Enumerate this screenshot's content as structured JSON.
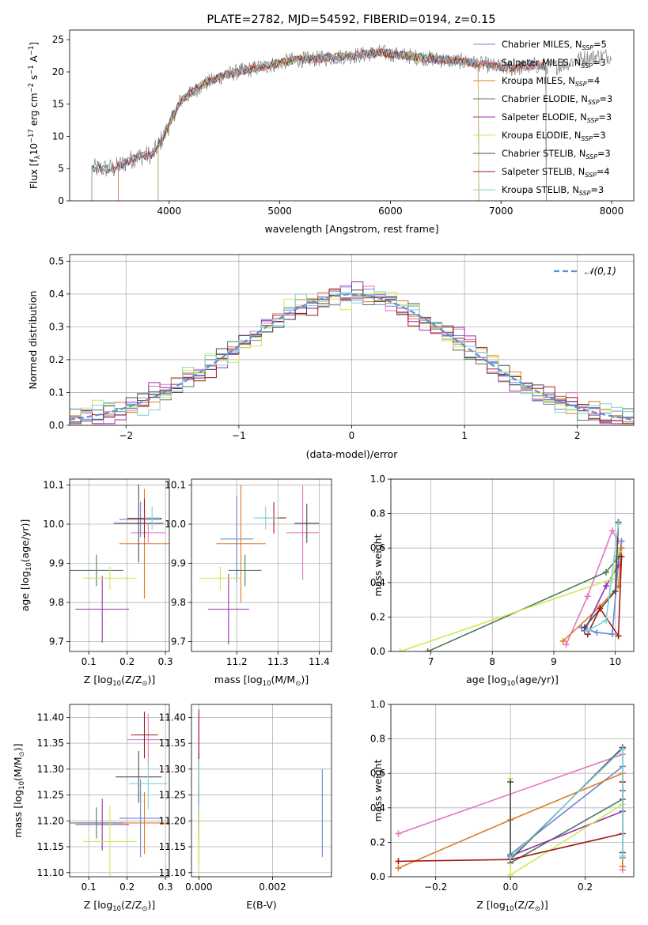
{
  "figure_title": "PLATE=2782, MJD=54592, FIBERID=0194, z=0.15",
  "colors": {
    "chabrier_miles": "#6b86d6",
    "salpeter_miles": "#e377c2",
    "kroupa_miles": "#e07b24",
    "chabrier_elodie": "#4f7a5c",
    "salpeter_elodie": "#9b2fb0",
    "kroupa_elodie": "#cde85a",
    "chabrier_stelib": "#4d4d4d",
    "salpeter_stelib": "#a11a1a",
    "kroupa_stelib": "#7fd1d6",
    "data_spectrum": "#7f7f7f",
    "normal_curve": "#5b8fd6",
    "grid": "#b0b0b0"
  },
  "chart_data": [
    {
      "type": "line",
      "id": "spectrum",
      "title": "PLATE=2782, MJD=54592, FIBERID=0194, z=0.15",
      "xlabel": "wavelength [Angstrom, rest frame]",
      "ylabel_parts": [
        "Flux [f",
        "λ",
        "10",
        "−17",
        " erg cm",
        "−2",
        " s",
        "−1",
        " A",
        "−1",
        "]"
      ],
      "xlim": [
        3100,
        8200
      ],
      "ylim": [
        0,
        26.5
      ],
      "xticks": [
        4000,
        5000,
        6000,
        7000,
        8000
      ],
      "yticks": [
        0,
        5,
        10,
        15,
        20,
        25
      ],
      "grid": false,
      "legend_position": "right",
      "series_names": [
        "Chabrier MILES, N$_{SSP}$=5",
        "Salpeter MILES, N$_{SSP}$=3",
        "Kroupa MILES, N$_{SSP}$=4",
        "Chabrier ELODIE, N$_{SSP}$=3",
        "Salpeter ELODIE, N$_{SSP}$=3",
        "Kroupa ELODIE, N$_{SSP}$=3",
        "Chabrier STELIB, N$_{SSP}$=3",
        "Salpeter STELIB, N$_{SSP}$=4",
        "Kroupa STELIB, N$_{SSP}$=3"
      ],
      "legend_labels": [
        "Chabrier MILES, N",
        "Salpeter MILES, N",
        "Kroupa MILES, N",
        "Chabrier ELODIE, N",
        "Salpeter ELODIE, N",
        "Kroupa ELODIE, N",
        "Chabrier STELIB, N",
        "Salpeter STELIB, N",
        "Kroupa STELIB, N"
      ],
      "legend_sub": "SSP",
      "legend_values": [
        "=5",
        "=3",
        "=4",
        "=3",
        "=3",
        "=3",
        "=3",
        "=4",
        "=3"
      ],
      "continuum": {
        "x": [
          3300,
          3500,
          3700,
          3850,
          3950,
          4100,
          4300,
          4500,
          4700,
          4900,
          5100,
          5300,
          5500,
          5700,
          5900,
          6100,
          6300,
          6500,
          6700,
          6900,
          7100,
          7300,
          7500,
          7700,
          7900
        ],
        "y": [
          5.0,
          5.0,
          6.8,
          7.2,
          10.0,
          15.5,
          18.0,
          19.5,
          20.3,
          21.0,
          21.8,
          22.0,
          22.3,
          22.6,
          23.0,
          22.6,
          22.2,
          21.8,
          21.5,
          21.0,
          20.5,
          21.0,
          20.8,
          22.0,
          22.5
        ]
      },
      "model_ranges": [
        [
          3540,
          7410
        ],
        [
          3540,
          7410
        ],
        [
          3540,
          7410
        ],
        [
          3900,
          6800
        ],
        [
          3900,
          6800
        ],
        [
          3900,
          6800
        ],
        [
          3300,
          7410
        ],
        [
          3300,
          7410
        ],
        [
          3300,
          7410
        ]
      ]
    },
    {
      "type": "line",
      "id": "residuals",
      "xlabel": "(data-model)/error",
      "ylabel": "Normed distribution",
      "xlim": [
        -2.5,
        2.5
      ],
      "ylim": [
        0,
        0.52
      ],
      "xticks": [
        -2,
        -1,
        0,
        1,
        2
      ],
      "xticklabels": [
        "−2",
        "−1",
        "0",
        "1",
        "2"
      ],
      "yticks": [
        0.0,
        0.1,
        0.2,
        0.3,
        0.4,
        0.5
      ],
      "yticklabels": [
        "0.0",
        "0.1",
        "0.2",
        "0.3",
        "0.4",
        "0.5"
      ],
      "grid": true,
      "legend_label": "𝒩(0,1)",
      "legend_position": "top-right",
      "bin_width": 0.1,
      "offsets": [
        0.0,
        0.018,
        -0.012,
        0.01,
        -0.022,
        0.024,
        -0.006,
        0.016,
        -0.018
      ]
    },
    {
      "type": "scatter",
      "id": "age_vs_Z",
      "xlabel_parts": [
        "Z [log",
        "10",
        "(Z/Z",
        "⊙",
        ")]"
      ],
      "ylabel_parts": [
        "age  [log",
        "10",
        "(age/yr)]"
      ],
      "xlim": [
        0.05,
        0.31
      ],
      "ylim": [
        9.675,
        10.115
      ],
      "xticks": [
        0.1,
        0.2,
        0.3
      ],
      "xticklabels": [
        "0.1",
        "0.2",
        "0.3"
      ],
      "yticks": [
        9.7,
        9.8,
        9.9,
        10.0,
        10.1
      ],
      "yticklabels": [
        "9.7",
        "9.8",
        "9.9",
        "10.0",
        "10.1"
      ],
      "grid": true,
      "points": [
        {
          "x": 0.235,
          "y": 10.012,
          "xerr": 0.055,
          "yerr": 0.045
        },
        {
          "x": 0.255,
          "y": 9.978,
          "xerr": 0.045,
          "yerr": 0.025
        },
        {
          "x": 0.245,
          "y": 9.95,
          "xerr": 0.065,
          "yerr": 0.14
        },
        {
          "x": 0.12,
          "y": 9.882,
          "xerr": 0.07,
          "yerr": 0.04
        },
        {
          "x": 0.135,
          "y": 9.783,
          "xerr": 0.07,
          "yerr": 0.085
        },
        {
          "x": 0.155,
          "y": 9.862,
          "xerr": 0.07,
          "yerr": 0.03
        },
        {
          "x": 0.23,
          "y": 10.002,
          "xerr": 0.065,
          "yerr": 0.1
        },
        {
          "x": 0.245,
          "y": 10.015,
          "xerr": 0.045,
          "yerr": 0.05
        },
        {
          "x": 0.265,
          "y": 10.016,
          "xerr": 0.02,
          "yerr": 0.03
        }
      ]
    },
    {
      "type": "scatter",
      "id": "age_vs_mass",
      "xlabel_parts": [
        "mass [log",
        "10",
        "(M/M",
        "⊙",
        ")]"
      ],
      "xlim": [
        11.09,
        11.43
      ],
      "ylim": [
        9.675,
        10.115
      ],
      "xticks": [
        11.2,
        11.3,
        11.4
      ],
      "xticklabels": [
        "11.2",
        "11.3",
        "11.4"
      ],
      "yticks": [
        9.7,
        9.8,
        9.9,
        10.0,
        10.1
      ],
      "yticklabels": [
        "9.7",
        "9.8",
        "9.9",
        "10.0",
        "10.1"
      ],
      "grid": true,
      "points": [
        {
          "x": 11.2,
          "y": 9.962,
          "xerr": 0.04,
          "yerr": 0.11
        },
        {
          "x": 11.36,
          "y": 9.978,
          "xerr": 0.04,
          "yerr": 0.12
        },
        {
          "x": 11.21,
          "y": 9.95,
          "xerr": 0.06,
          "yerr": 0.15
        },
        {
          "x": 11.22,
          "y": 9.882,
          "xerr": 0.04,
          "yerr": 0.04
        },
        {
          "x": 11.18,
          "y": 9.783,
          "xerr": 0.05,
          "yerr": 0.09
        },
        {
          "x": 11.16,
          "y": 9.862,
          "xerr": 0.05,
          "yerr": 0.03
        },
        {
          "x": 11.37,
          "y": 10.002,
          "xerr": 0.03,
          "yerr": 0.05
        },
        {
          "x": 11.29,
          "y": 10.016,
          "xerr": 0.03,
          "yerr": 0.04
        },
        {
          "x": 11.27,
          "y": 10.016,
          "xerr": 0.03,
          "yerr": 0.03
        }
      ]
    },
    {
      "type": "line",
      "id": "weight_vs_age",
      "xlabel_parts": [
        "age  [log",
        "10",
        "(age/yr)]"
      ],
      "ylabel": "mass weight",
      "xlim": [
        6.35,
        10.3
      ],
      "ylim": [
        0,
        1.0
      ],
      "xticks": [
        7,
        8,
        9,
        10
      ],
      "xticklabels": [
        "7",
        "8",
        "9",
        "10"
      ],
      "yticks": [
        0.0,
        0.2,
        0.4,
        0.6,
        0.8,
        1.0
      ],
      "yticklabels": [
        "0.0",
        "0.2",
        "0.4",
        "0.6",
        "0.8",
        "1.0"
      ],
      "grid": true,
      "series": [
        {
          "x": [
            9.45,
            9.7,
            9.95,
            10.05,
            10.1
          ],
          "y": [
            0.14,
            0.11,
            0.1,
            0.52,
            0.64
          ]
        },
        {
          "x": [
            9.2,
            9.55,
            9.95,
            10.05
          ],
          "y": [
            0.04,
            0.32,
            0.7,
            0.64
          ]
        },
        {
          "x": [
            9.15,
            9.75,
            10.05,
            10.1
          ],
          "y": [
            0.06,
            0.26,
            0.38,
            0.6
          ]
        },
        {
          "x": [
            6.95,
            9.85,
            10.05
          ],
          "y": [
            0.0,
            0.46,
            0.55
          ]
        },
        {
          "x": [
            9.5,
            9.85,
            10.05
          ],
          "y": [
            0.12,
            0.38,
            0.5
          ]
        },
        {
          "x": [
            6.5,
            9.95,
            10.05
          ],
          "y": [
            0.0,
            0.42,
            0.58
          ]
        },
        {
          "x": [
            9.5,
            10.0,
            10.05
          ],
          "y": [
            0.14,
            0.35,
            0.75
          ]
        },
        {
          "x": [
            9.55,
            9.75,
            10.05,
            10.1
          ],
          "y": [
            0.1,
            0.25,
            0.09,
            0.55
          ]
        },
        {
          "x": [
            9.55,
            9.85,
            10.05
          ],
          "y": [
            0.12,
            0.18,
            0.74
          ]
        }
      ]
    },
    {
      "type": "scatter",
      "id": "mass_vs_Z",
      "xlabel_parts": [
        "Z [log",
        "10",
        "(Z/Z",
        "⊙",
        ")]"
      ],
      "ylabel_parts": [
        "mass [log",
        "10",
        "(M/M",
        "⊙",
        ")]"
      ],
      "xlim": [
        0.05,
        0.31
      ],
      "ylim": [
        11.092,
        11.425
      ],
      "xticks": [
        0.1,
        0.2,
        0.3
      ],
      "xticklabels": [
        "0.1",
        "0.2",
        "0.3"
      ],
      "yticks": [
        11.1,
        11.15,
        11.2,
        11.25,
        11.3,
        11.35,
        11.4
      ],
      "yticklabels": [
        "11.10",
        "11.15",
        "11.20",
        "11.25",
        "11.30",
        "11.35",
        "11.40"
      ],
      "grid": true,
      "points": [
        {
          "x": 0.235,
          "y": 11.205,
          "xerr": 0.055,
          "yerr": 0.075
        },
        {
          "x": 0.255,
          "y": 11.357,
          "xerr": 0.055,
          "yerr": 0.05
        },
        {
          "x": 0.245,
          "y": 11.196,
          "xerr": 0.065,
          "yerr": 0.06
        },
        {
          "x": 0.12,
          "y": 11.196,
          "xerr": 0.07,
          "yerr": 0.03
        },
        {
          "x": 0.135,
          "y": 11.193,
          "xerr": 0.07,
          "yerr": 0.05
        },
        {
          "x": 0.155,
          "y": 11.16,
          "xerr": 0.07,
          "yerr": 0.07
        },
        {
          "x": 0.23,
          "y": 11.285,
          "xerr": 0.06,
          "yerr": 0.05
        },
        {
          "x": 0.245,
          "y": 11.366,
          "xerr": 0.035,
          "yerr": 0.045
        },
        {
          "x": 0.255,
          "y": 11.272,
          "xerr": 0.05,
          "yerr": 0.05
        }
      ]
    },
    {
      "type": "scatter",
      "id": "mass_vs_ebv",
      "xlabel": "E(B-V)",
      "xlim": [
        -0.0002,
        0.0036
      ],
      "ylim": [
        11.092,
        11.425
      ],
      "xticks": [
        0.0,
        0.002
      ],
      "xticklabels": [
        "0.000",
        "0.002"
      ],
      "yticks": [
        11.1,
        11.15,
        11.2,
        11.25,
        11.3,
        11.35,
        11.4
      ],
      "yticklabels": [
        "11.10",
        "11.15",
        "11.20",
        "11.25",
        "11.30",
        "11.35",
        "11.40"
      ],
      "grid": true,
      "points": [
        {
          "x": 0.00335,
          "y": 11.215,
          "xerr": 0,
          "yerr": 0.085
        },
        {
          "x": 0.0,
          "y": 11.35,
          "xerr": 0,
          "yerr": 0.04
        },
        {
          "x": 0.0,
          "y": 11.2,
          "xerr": 0,
          "yerr": 0.08
        },
        {
          "x": 0.0,
          "y": 11.195,
          "xerr": 0,
          "yerr": 0.03
        },
        {
          "x": 0.0,
          "y": 11.23,
          "xerr": 0,
          "yerr": 0.04
        },
        {
          "x": 0.0,
          "y": 11.16,
          "xerr": 0,
          "yerr": 0.07
        },
        {
          "x": 0.0,
          "y": 11.28,
          "xerr": 0,
          "yerr": 0.05
        },
        {
          "x": 0.0,
          "y": 11.365,
          "xerr": 0,
          "yerr": 0.05
        },
        {
          "x": 0.0,
          "y": 11.27,
          "xerr": 0,
          "yerr": 0.05
        }
      ]
    },
    {
      "type": "line",
      "id": "weight_vs_Z",
      "xlabel_parts": [
        "Z [log",
        "10",
        "(Z/Z",
        "⊙",
        ")]"
      ],
      "ylabel": "mass weight",
      "xlim": [
        -0.32,
        0.33
      ],
      "ylim": [
        0,
        1.0
      ],
      "xticks": [
        -0.2,
        0.0,
        0.2
      ],
      "xticklabels": [
        "−0.2",
        "0.0",
        "0.2"
      ],
      "yticks": [
        0.0,
        0.2,
        0.4,
        0.6,
        0.8,
        1.0
      ],
      "yticklabels": [
        "0.0",
        "0.2",
        "0.4",
        "0.6",
        "0.8",
        "1.0"
      ],
      "grid": true,
      "series": [
        {
          "x": [
            0.0,
            0.3,
            0.3
          ],
          "y": [
            0.13,
            0.64,
            0.11
          ]
        },
        {
          "x": [
            -0.3,
            0.3,
            0.3
          ],
          "y": [
            0.25,
            0.71,
            0.04
          ]
        },
        {
          "x": [
            -0.3,
            0.0,
            0.3,
            0.3
          ],
          "y": [
            0.05,
            0.33,
            0.6,
            0.06
          ]
        },
        {
          "x": [
            0.0,
            0.3,
            0.3
          ],
          "y": [
            0.08,
            0.45,
            0.75
          ]
        },
        {
          "x": [
            0.0,
            0.3,
            0.3
          ],
          "y": [
            0.12,
            0.38,
            0.5
          ]
        },
        {
          "x": [
            0.0,
            0.0,
            0.3
          ],
          "y": [
            0.57,
            0.01,
            0.42
          ]
        },
        {
          "x": [
            0.0,
            0.0,
            0.3,
            0.3
          ],
          "y": [
            0.55,
            0.1,
            0.75,
            0.14
          ]
        },
        {
          "x": [
            -0.3,
            0.0,
            0.3,
            0.3
          ],
          "y": [
            0.09,
            0.1,
            0.25,
            0.55
          ]
        },
        {
          "x": [
            0.0,
            0.3,
            0.3
          ],
          "y": [
            0.11,
            0.74,
            0.12
          ]
        }
      ]
    }
  ]
}
